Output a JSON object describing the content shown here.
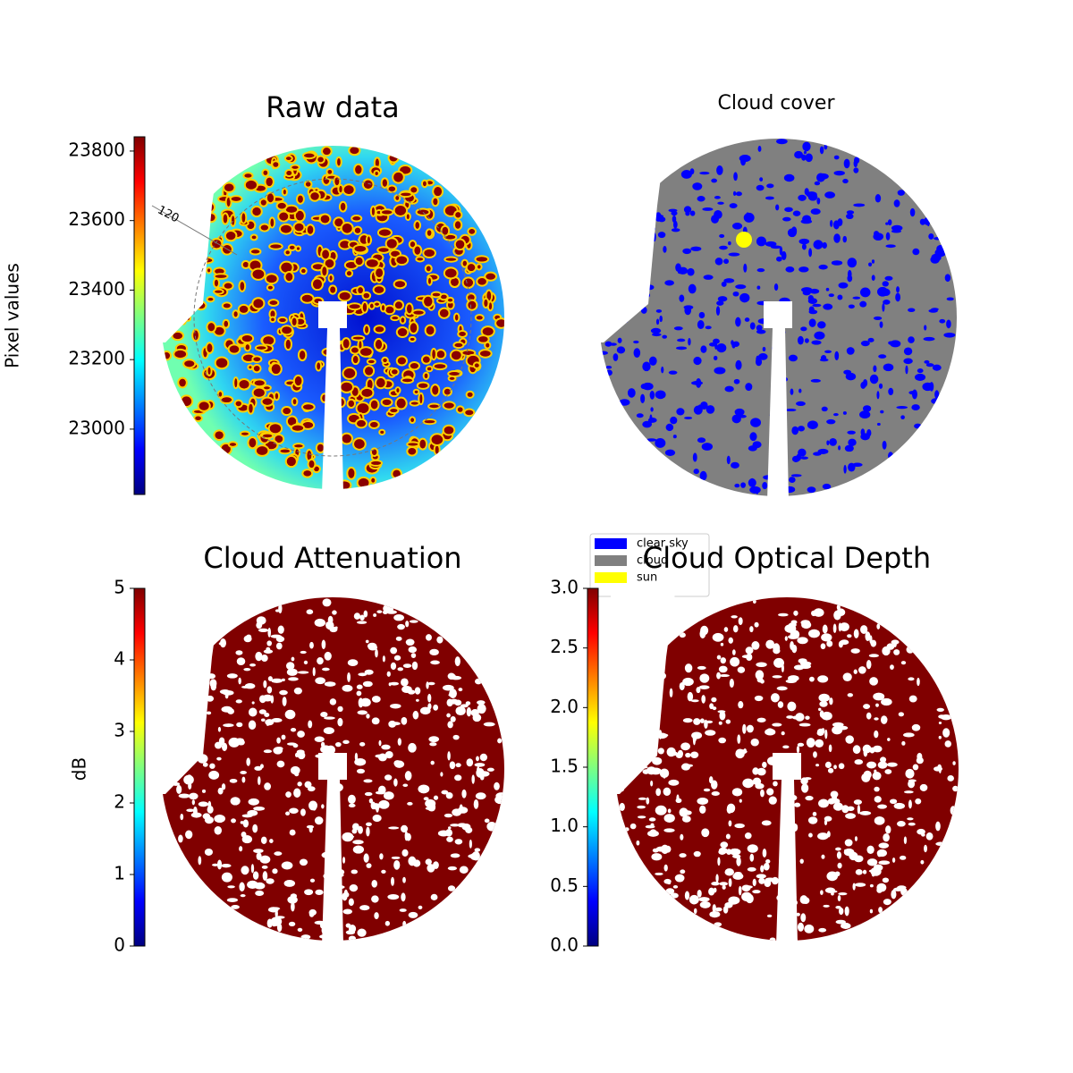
{
  "chart_data": [
    {
      "type": "image",
      "title": "Raw data",
      "ylabel": "Pixel values",
      "ylim": [
        22812,
        23841
      ],
      "yticks": [
        23000,
        23200,
        23400,
        23600,
        23800
      ],
      "colormap": "jet",
      "annotations": [
        "120"
      ]
    },
    {
      "type": "image",
      "title": "Cloud cover",
      "legend": [
        {
          "name": "clear sky",
          "color": "#0000ff"
        },
        {
          "name": "cloud",
          "color": "#808080"
        },
        {
          "name": "sun",
          "color": "#ffff00"
        }
      ]
    },
    {
      "type": "image",
      "title": "Cloud Attenuation",
      "ylabel": "dB",
      "ylim": [
        0,
        5
      ],
      "yticks": [
        0,
        1,
        2,
        3,
        4,
        5
      ],
      "colormap": "jet"
    },
    {
      "type": "image",
      "title": "Cloud Optical Depth",
      "ylim": [
        0,
        3
      ],
      "yticks": [
        {
          "value": 0,
          "label": "0.0"
        },
        0.5,
        {
          "value": 1,
          "label": "1.0"
        },
        1.5,
        {
          "value": 2,
          "label": "2.0"
        },
        2.5,
        {
          "value": 3,
          "label": "3.0"
        }
      ],
      "colormap": "jet"
    }
  ]
}
